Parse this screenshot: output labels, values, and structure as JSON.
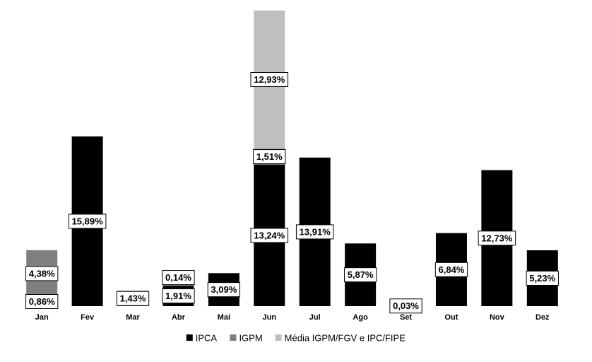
{
  "chart_data": {
    "type": "bar",
    "stacked": true,
    "categories": [
      "Jan",
      "Fev",
      "Mar",
      "Abr",
      "Mai",
      "Jun",
      "Jul",
      "Ago",
      "Set",
      "Out",
      "Nov",
      "Dez"
    ],
    "ylim": [
      0,
      28
    ],
    "series": [
      {
        "name": "IPCA",
        "color": "#000000",
        "values": [
          0.86,
          15.89,
          1.43,
          1.91,
          3.09,
          13.24,
          13.91,
          5.87,
          0.03,
          6.84,
          12.73,
          5.23
        ],
        "value_labels": [
          "0,86%",
          "15,89%",
          "1,43%",
          "1,91%",
          "3,09%",
          "13,24%",
          "13,91%",
          "5,87%",
          "0,03%",
          "6,84%",
          "12,73%",
          "5,23%"
        ]
      },
      {
        "name": "IGPM",
        "color": "#7f7f7f",
        "values": [
          4.38,
          null,
          null,
          0.14,
          null,
          1.51,
          null,
          null,
          null,
          null,
          null,
          null
        ],
        "value_labels": [
          "4,38%",
          null,
          null,
          "0,14%",
          null,
          "1,51%",
          null,
          null,
          null,
          null,
          null,
          null
        ]
      },
      {
        "name": "Média IGPM/FGV e IPC/FIPE",
        "color": "#bfbfbf",
        "values": [
          null,
          null,
          null,
          null,
          null,
          12.93,
          null,
          null,
          null,
          null,
          null,
          null
        ],
        "value_labels": [
          null,
          null,
          null,
          null,
          null,
          "12,93%",
          null,
          null,
          null,
          null,
          null,
          null
        ]
      }
    ],
    "legend": "bottom"
  }
}
